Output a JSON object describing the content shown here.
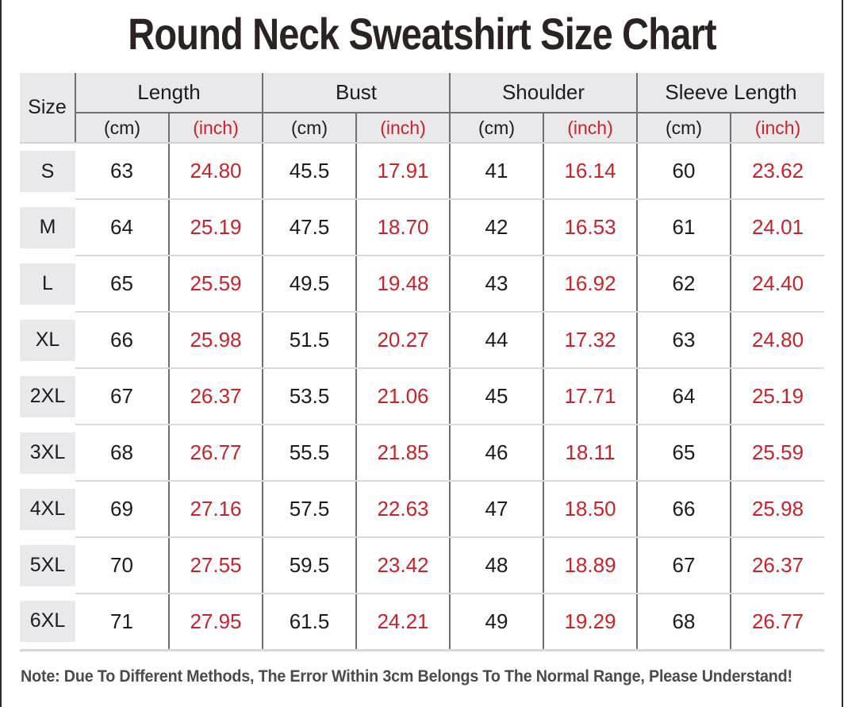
{
  "title": "Round Neck Sweatshirt Size Chart",
  "note": "Note: Due To Different Methods, The Error Within 3cm Belongs To The Normal Range, Please Understand!",
  "colors": {
    "accent_red": "#c8232a",
    "header_bg": "#e9e9eb",
    "grid_dark": "#6e6f72",
    "grid_light": "#dadadc",
    "text_dark": "#1c1c1e",
    "note_gray": "#4b4b4d"
  },
  "chart_data": {
    "type": "table",
    "title": "Round Neck Sweatshirt Size Chart",
    "header": {
      "size": "Size",
      "groups": [
        "Length",
        "Bust",
        "Shoulder",
        "Sleeve Length"
      ],
      "units": [
        "(cm)",
        "(inch)"
      ]
    },
    "columns": [
      "Size",
      "Length (cm)",
      "Length (inch)",
      "Bust (cm)",
      "Bust (inch)",
      "Shoulder (cm)",
      "Shoulder (inch)",
      "Sleeve Length (cm)",
      "Sleeve Length (inch)"
    ],
    "rows": [
      {
        "size": "S",
        "values": [
          "63",
          "24.80",
          "45.5",
          "17.91",
          "41",
          "16.14",
          "60",
          "23.62"
        ]
      },
      {
        "size": "M",
        "values": [
          "64",
          "25.19",
          "47.5",
          "18.70",
          "42",
          "16.53",
          "61",
          "24.01"
        ]
      },
      {
        "size": "L",
        "values": [
          "65",
          "25.59",
          "49.5",
          "19.48",
          "43",
          "16.92",
          "62",
          "24.40"
        ]
      },
      {
        "size": "XL",
        "values": [
          "66",
          "25.98",
          "51.5",
          "20.27",
          "44",
          "17.32",
          "63",
          "24.80"
        ]
      },
      {
        "size": "2XL",
        "values": [
          "67",
          "26.37",
          "53.5",
          "21.06",
          "45",
          "17.71",
          "64",
          "25.19"
        ]
      },
      {
        "size": "3XL",
        "values": [
          "68",
          "26.77",
          "55.5",
          "21.85",
          "46",
          "18.11",
          "65",
          "25.59"
        ]
      },
      {
        "size": "4XL",
        "values": [
          "69",
          "27.16",
          "57.5",
          "22.63",
          "47",
          "18.50",
          "66",
          "25.98"
        ]
      },
      {
        "size": "5XL",
        "values": [
          "70",
          "27.55",
          "59.5",
          "23.42",
          "48",
          "18.89",
          "67",
          "26.37"
        ]
      },
      {
        "size": "6XL",
        "values": [
          "71",
          "27.95",
          "61.5",
          "24.21",
          "49",
          "19.29",
          "68",
          "26.77"
        ]
      }
    ]
  }
}
